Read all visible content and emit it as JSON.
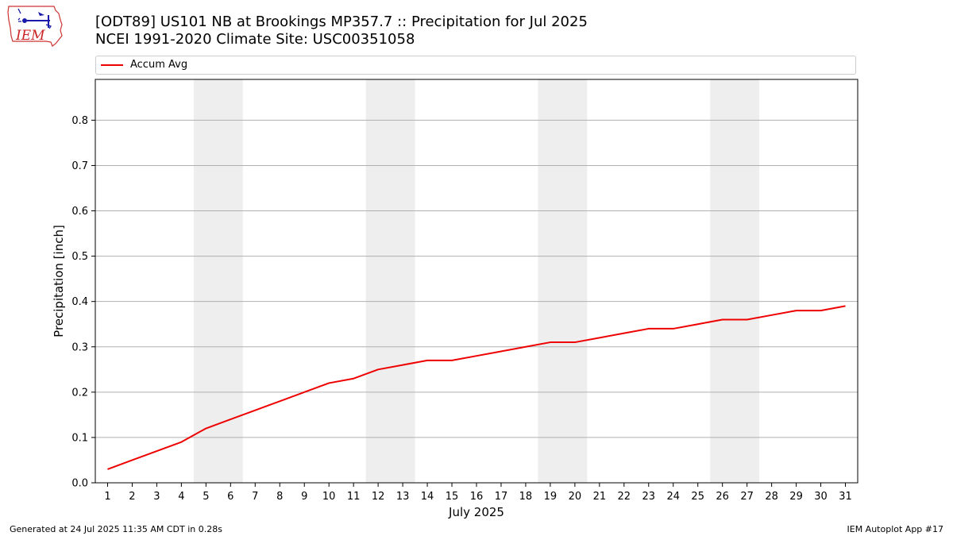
{
  "header": {
    "title_line1": "[ODT89] US101 NB at Brookings MP357.7  :: Precipitation for Jul 2025",
    "title_line2": "NCEI 1991-2020 Climate Site: USC00351058"
  },
  "logo": {
    "text": "IEM",
    "icon": "iem-iowa-logo"
  },
  "footer": {
    "left": "Generated at 24 Jul 2025 11:35 AM CDT in 0.28s",
    "right": "IEM Autoplot App #17"
  },
  "chart_data": {
    "type": "line",
    "xlabel": "July 2025",
    "ylabel": "Precipitation [inch]",
    "x": [
      1,
      2,
      3,
      4,
      5,
      6,
      7,
      8,
      9,
      10,
      11,
      12,
      13,
      14,
      15,
      16,
      17,
      18,
      19,
      20,
      21,
      22,
      23,
      24,
      25,
      26,
      27,
      28,
      29,
      30,
      31
    ],
    "series": [
      {
        "name": "Accum Avg",
        "color": "#ee0000",
        "values": [
          0.03,
          0.05,
          0.07,
          0.09,
          0.12,
          0.14,
          0.16,
          0.18,
          0.2,
          0.22,
          0.23,
          0.25,
          0.26,
          0.27,
          0.27,
          0.28,
          0.29,
          0.3,
          0.31,
          0.31,
          0.32,
          0.33,
          0.34,
          0.34,
          0.35,
          0.36,
          0.36,
          0.37,
          0.38,
          0.38,
          0.39
        ]
      }
    ],
    "xlim": [
      0.5,
      31.5
    ],
    "ylim": [
      0,
      0.89
    ],
    "yticks": [
      0.0,
      0.1,
      0.2,
      0.3,
      0.4,
      0.5,
      0.6,
      0.7,
      0.8
    ],
    "ytick_labels": [
      "0.0",
      "0.1",
      "0.2",
      "0.3",
      "0.4",
      "0.5",
      "0.6",
      "0.7",
      "0.8"
    ],
    "weekend_bands": [
      [
        5,
        6
      ],
      [
        12,
        13
      ],
      [
        19,
        20
      ],
      [
        26,
        27
      ]
    ],
    "band_color": "#eeeeee",
    "grid": "y",
    "legend_position": "top"
  }
}
